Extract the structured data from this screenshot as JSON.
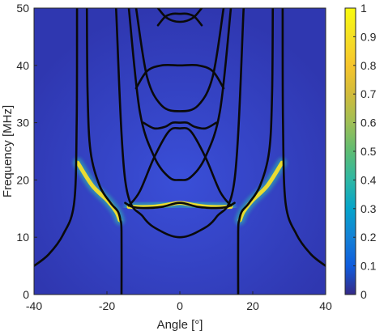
{
  "chart_data": {
    "type": "heatmap",
    "title": "",
    "xlabel": "Angle [°]",
    "ylabel": "Frequency [MHz]",
    "xlim": [
      -40,
      40
    ],
    "ylim": [
      0,
      50
    ],
    "x_ticks": [
      -40,
      -20,
      0,
      20,
      40
    ],
    "x_tick_labels": [
      "-40",
      "-20",
      "0",
      "20",
      "40"
    ],
    "y_ticks": [
      0,
      10,
      20,
      30,
      40,
      50
    ],
    "y_tick_labels": [
      "0",
      "10",
      "20",
      "30",
      "40",
      "50"
    ],
    "colormap": "parula",
    "colorbar": {
      "range": [
        0,
        1
      ],
      "ticks": [
        0,
        0.1,
        0.2,
        0.3,
        0.4,
        0.5,
        0.6,
        0.7,
        0.8,
        0.9,
        1
      ],
      "tick_labels": [
        "0",
        "0.1",
        "0.2",
        "0.3",
        "0.4",
        "0.5",
        "0.6",
        "0.7",
        "0.8",
        "0.9",
        "1"
      ]
    },
    "grid": false,
    "intensity_features": [
      {
        "x": [
          -28,
          -24,
          -20,
          -17.5,
          -16.5
        ],
        "y": [
          23,
          19,
          16.5,
          14.5,
          13
        ]
      },
      {
        "x": [
          -14,
          -8,
          -4,
          0,
          4,
          8,
          14
        ],
        "y": [
          15.3,
          15.3,
          15.6,
          16.0,
          15.6,
          15.3,
          15.3
        ]
      },
      {
        "x": [
          16.5,
          17.5,
          20,
          24,
          28
        ],
        "y": [
          13,
          14.5,
          16.5,
          19,
          23
        ]
      }
    ],
    "series": [
      {
        "x": [
          -40,
          -36,
          -32,
          -29,
          -28.3,
          -28.2
        ],
        "y": [
          5,
          7,
          10.5,
          16,
          30,
          50
        ]
      },
      {
        "x": [
          28.2,
          28.3,
          29,
          32,
          36,
          40
        ],
        "y": [
          50,
          30,
          16,
          10.5,
          7,
          5
        ]
      },
      {
        "x": [
          -16,
          -16,
          -16.3,
          -17,
          -19,
          -22,
          -24.5,
          -25.3,
          -25.5
        ],
        "y": [
          0,
          11,
          13,
          14.5,
          16,
          19,
          25,
          35,
          50
        ]
      },
      {
        "x": [
          25.5,
          25.3,
          24.5,
          22,
          19,
          17,
          16.3,
          16,
          16
        ],
        "y": [
          50,
          35,
          25,
          19,
          16,
          14.5,
          13,
          11,
          0
        ]
      },
      {
        "x": [
          -17.5,
          -15,
          -10,
          -5,
          0,
          5,
          10,
          15,
          17.5
        ],
        "y": [
          50,
          20,
          13.5,
          11,
          10,
          11,
          13.5,
          20,
          50
        ]
      },
      {
        "x": [
          -15,
          -13,
          -10,
          -5,
          0,
          5,
          10,
          13,
          15
        ],
        "y": [
          16,
          15.3,
          15.1,
          15.3,
          16,
          15.3,
          15.1,
          15.3,
          16
        ]
      },
      {
        "x": [
          -14,
          -11,
          -7,
          -3,
          0,
          3,
          7,
          11,
          14
        ],
        "y": [
          50,
          32,
          24,
          20.5,
          20,
          20.5,
          24,
          32,
          50
        ]
      },
      {
        "x": [
          -14,
          -11,
          -7,
          -3,
          0,
          3,
          7,
          11,
          14
        ],
        "y": [
          15.5,
          18,
          24,
          28.5,
          29,
          28.5,
          24,
          18,
          15.5
        ]
      },
      {
        "x": [
          -12,
          -9,
          -5,
          0,
          5,
          9,
          12
        ],
        "y": [
          50,
          38,
          33,
          32,
          33,
          38,
          50
        ]
      },
      {
        "x": [
          -12,
          -9,
          -5,
          0,
          5,
          9,
          12
        ],
        "y": [
          36,
          39,
          40,
          40,
          40,
          39,
          36
        ]
      },
      {
        "x": [
          -10,
          -7,
          -4,
          -2,
          0,
          2,
          4,
          7,
          10
        ],
        "y": [
          30,
          29,
          29.3,
          30,
          30,
          30,
          29.3,
          29,
          30
        ]
      },
      {
        "x": [
          -6,
          -4,
          -2,
          0,
          2,
          4,
          6
        ],
        "y": [
          50,
          48.5,
          47.8,
          47.6,
          47.8,
          48.5,
          50
        ]
      },
      {
        "x": [
          -6,
          -4,
          -2,
          0,
          2,
          4,
          6
        ],
        "y": [
          47,
          48.5,
          49,
          49,
          49,
          48.5,
          47
        ]
      }
    ]
  }
}
